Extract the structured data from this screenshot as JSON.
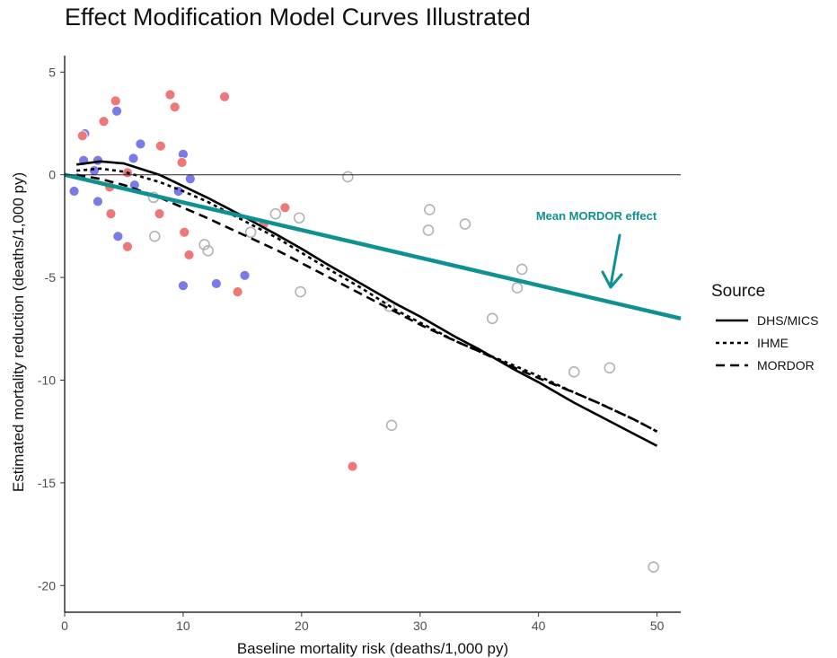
{
  "chart_data": {
    "type": "scatter",
    "title": "Effect Modification Model Curves Illustrated",
    "xlabel": "Baseline mortality risk (deaths/1,000 py)",
    "ylabel": "Estimated mortality reduction (deaths/1,000 py)",
    "xlim": [
      0,
      52
    ],
    "ylim": [
      -21.3,
      5.8
    ],
    "x_ticks": [
      "0",
      "10",
      "20",
      "30",
      "40",
      "50"
    ],
    "y_ticks": [
      "5",
      "0",
      "-5",
      "-10",
      "-15",
      "-20"
    ],
    "reference_line_y": 0,
    "points": {
      "blue": {
        "color": "#7b7be8",
        "data": [
          [
            0.8,
            -0.8
          ],
          [
            1.7,
            2.0
          ],
          [
            2.5,
            0.2
          ],
          [
            1.6,
            0.7
          ],
          [
            2.8,
            0.7
          ],
          [
            2.8,
            -1.3
          ],
          [
            4.4,
            3.1
          ],
          [
            4.5,
            -3.0
          ],
          [
            5.8,
            0.8
          ],
          [
            6.4,
            1.5
          ],
          [
            5.9,
            -0.5
          ],
          [
            10.0,
            1.0
          ],
          [
            9.6,
            -0.8
          ],
          [
            10.0,
            -5.4
          ],
          [
            10.6,
            -0.2
          ],
          [
            12.8,
            -5.3
          ],
          [
            15.2,
            -4.9
          ]
        ]
      },
      "red": {
        "color": "#ee7777",
        "data": [
          [
            1.5,
            1.9
          ],
          [
            3.3,
            2.6
          ],
          [
            4.3,
            3.6
          ],
          [
            3.9,
            -1.9
          ],
          [
            3.8,
            -0.6
          ],
          [
            5.3,
            -3.5
          ],
          [
            5.3,
            0.1
          ],
          [
            8.1,
            1.4
          ],
          [
            8.9,
            3.9
          ],
          [
            9.3,
            3.3
          ],
          [
            13.5,
            3.8
          ],
          [
            8.0,
            -1.9
          ],
          [
            9.9,
            0.6
          ],
          [
            10.1,
            -2.8
          ],
          [
            10.5,
            -3.9
          ],
          [
            14.6,
            -5.7
          ],
          [
            16.8,
            -2.4
          ],
          [
            18.6,
            -1.6
          ],
          [
            24.3,
            -14.2
          ]
        ]
      },
      "grey_open": {
        "color": "#b3b3b3",
        "data": [
          [
            7.6,
            -3.0
          ],
          [
            7.5,
            -1.1
          ],
          [
            11.8,
            -3.4
          ],
          [
            12.1,
            -3.7
          ],
          [
            15.7,
            -2.8
          ],
          [
            17.8,
            -1.9
          ],
          [
            19.8,
            -2.1
          ],
          [
            19.9,
            -5.7
          ],
          [
            23.9,
            -0.1
          ],
          [
            27.4,
            -6.4
          ],
          [
            27.6,
            -12.2
          ],
          [
            30.8,
            -1.7
          ],
          [
            30.7,
            -2.7
          ],
          [
            33.8,
            -2.4
          ],
          [
            36.1,
            -7.0
          ],
          [
            38.2,
            -5.5
          ],
          [
            38.6,
            -4.6
          ],
          [
            43.0,
            -9.6
          ],
          [
            46.0,
            -9.4
          ],
          [
            49.7,
            -19.1
          ]
        ]
      }
    },
    "series": [
      {
        "name": "DHS/MICS",
        "style": "solid",
        "color": "#000000",
        "x": [
          1,
          3,
          5,
          8,
          10,
          12,
          15,
          18,
          20,
          22,
          25,
          28,
          30,
          33,
          35,
          38,
          40,
          43,
          45,
          48,
          50
        ],
        "y": [
          0.5,
          0.65,
          0.55,
          0.0,
          -0.55,
          -1.1,
          -2.0,
          -2.95,
          -3.6,
          -4.3,
          -5.3,
          -6.3,
          -6.9,
          -7.9,
          -8.5,
          -9.5,
          -10.1,
          -11.1,
          -11.7,
          -12.6,
          -13.2
        ]
      },
      {
        "name": "IHME",
        "style": "dotted",
        "color": "#000000",
        "x": [
          1,
          3,
          5,
          8,
          10,
          12,
          15,
          18,
          20,
          22,
          25,
          28,
          30,
          33,
          35,
          38,
          40,
          43,
          45,
          48,
          50
        ],
        "y": [
          0.2,
          0.3,
          0.15,
          -0.35,
          -0.8,
          -1.3,
          -2.2,
          -3.1,
          -3.8,
          -4.5,
          -5.5,
          -6.6,
          -7.2,
          -8.1,
          -8.6,
          -9.3,
          -9.8,
          -10.6,
          -11.1,
          -11.9,
          -12.5
        ]
      },
      {
        "name": "MORDOR",
        "style": "dashed",
        "color": "#000000",
        "x": [
          1,
          3,
          5,
          8,
          10,
          12,
          15,
          18,
          20,
          22,
          25,
          28,
          30,
          33,
          35,
          38,
          40,
          43,
          45,
          48,
          50
        ],
        "y": [
          0.0,
          -0.2,
          -0.5,
          -1.1,
          -1.6,
          -2.1,
          -2.9,
          -3.7,
          -4.3,
          -4.9,
          -5.8,
          -6.7,
          -7.3,
          -8.1,
          -8.6,
          -9.4,
          -9.9,
          -10.6,
          -11.1,
          -11.9,
          -12.5
        ]
      }
    ],
    "mean_line": {
      "x": [
        0,
        52
      ],
      "y": [
        0,
        -7.0
      ],
      "color": "#0f9191"
    },
    "annotation": {
      "text": "Mean MORDOR effect",
      "color": "#0f9191"
    },
    "legend": {
      "title": "Source",
      "placement": "right",
      "entries": [
        "DHS/MICS",
        "IHME",
        "MORDOR"
      ]
    },
    "grid": false
  }
}
